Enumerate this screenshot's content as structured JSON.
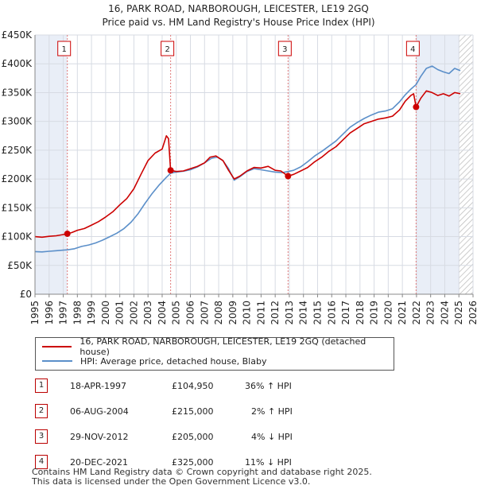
{
  "chart_data": {
    "type": "line",
    "title": "16, PARK ROAD, NARBOROUGH, LEICESTER, LE19 2GQ",
    "subtitle": "Price paid vs. HM Land Registry's House Price Index (HPI)",
    "xlim": [
      1995,
      2026
    ],
    "ylim": [
      0,
      450000
    ],
    "x_ticks": [
      "1995",
      "1996",
      "1997",
      "1998",
      "1999",
      "2000",
      "2001",
      "2002",
      "2003",
      "2004",
      "2005",
      "2006",
      "2007",
      "2008",
      "2009",
      "2010",
      "2011",
      "2012",
      "2013",
      "2014",
      "2015",
      "2016",
      "2017",
      "2018",
      "2019",
      "2020",
      "2021",
      "2022",
      "2023",
      "2024",
      "2025",
      "2026"
    ],
    "y_ticks": [
      {
        "value": 0,
        "label": "£0"
      },
      {
        "value": 50000,
        "label": "£50K"
      },
      {
        "value": 100000,
        "label": "£100K"
      },
      {
        "value": 150000,
        "label": "£150K"
      },
      {
        "value": 200000,
        "label": "£200K"
      },
      {
        "value": 250000,
        "label": "£250K"
      },
      {
        "value": 300000,
        "label": "£300K"
      },
      {
        "value": 350000,
        "label": "£350K"
      },
      {
        "value": 400000,
        "label": "£400K"
      },
      {
        "value": 450000,
        "label": "£450K"
      }
    ],
    "series": [
      {
        "name": "16, PARK ROAD, NARBOROUGH, LEICESTER, LE19 2GQ (detached house)",
        "color": "#cc0000",
        "points": [
          [
            1995.0,
            100000
          ],
          [
            1995.5,
            99000
          ],
          [
            1996.0,
            100500
          ],
          [
            1996.5,
            101500
          ],
          [
            1997.0,
            103500
          ],
          [
            1997.29,
            104950
          ],
          [
            1997.6,
            107000
          ],
          [
            1998.0,
            111000
          ],
          [
            1998.5,
            114000
          ],
          [
            1999.0,
            120000
          ],
          [
            1999.5,
            126000
          ],
          [
            2000.0,
            134000
          ],
          [
            2000.5,
            143000
          ],
          [
            2001.0,
            155000
          ],
          [
            2001.5,
            166000
          ],
          [
            2002.0,
            183000
          ],
          [
            2002.5,
            208000
          ],
          [
            2003.0,
            232000
          ],
          [
            2003.5,
            245000
          ],
          [
            2004.0,
            252000
          ],
          [
            2004.3,
            275000
          ],
          [
            2004.45,
            270000
          ],
          [
            2004.6,
            215000
          ],
          [
            2005.0,
            213000
          ],
          [
            2005.5,
            214000
          ],
          [
            2006.0,
            218000
          ],
          [
            2006.5,
            222000
          ],
          [
            2007.0,
            228000
          ],
          [
            2007.4,
            238000
          ],
          [
            2007.8,
            240000
          ],
          [
            2008.3,
            232000
          ],
          [
            2008.7,
            215000
          ],
          [
            2009.1,
            200000
          ],
          [
            2009.5,
            205000
          ],
          [
            2010.0,
            214000
          ],
          [
            2010.5,
            220000
          ],
          [
            2011.0,
            219000
          ],
          [
            2011.5,
            222000
          ],
          [
            2012.0,
            215000
          ],
          [
            2012.4,
            214000
          ],
          [
            2012.91,
            205000
          ],
          [
            2013.3,
            208000
          ],
          [
            2013.8,
            214000
          ],
          [
            2014.3,
            220000
          ],
          [
            2014.8,
            230000
          ],
          [
            2015.3,
            238000
          ],
          [
            2015.8,
            248000
          ],
          [
            2016.3,
            256000
          ],
          [
            2016.8,
            268000
          ],
          [
            2017.3,
            280000
          ],
          [
            2017.8,
            288000
          ],
          [
            2018.3,
            296000
          ],
          [
            2018.8,
            300000
          ],
          [
            2019.3,
            304000
          ],
          [
            2019.8,
            306000
          ],
          [
            2020.3,
            309000
          ],
          [
            2020.8,
            320000
          ],
          [
            2021.2,
            335000
          ],
          [
            2021.6,
            345000
          ],
          [
            2021.8,
            348000
          ],
          [
            2021.97,
            325000
          ],
          [
            2022.3,
            340000
          ],
          [
            2022.7,
            353000
          ],
          [
            2023.1,
            350000
          ],
          [
            2023.5,
            345000
          ],
          [
            2023.9,
            348000
          ],
          [
            2024.3,
            344000
          ],
          [
            2024.7,
            350000
          ],
          [
            2025.1,
            348000
          ]
        ]
      },
      {
        "name": "HPI: Average price, detached house, Blaby",
        "color": "#5b8fc9",
        "points": [
          [
            1995.0,
            74000
          ],
          [
            1995.5,
            73500
          ],
          [
            1996.0,
            74500
          ],
          [
            1996.5,
            75500
          ],
          [
            1997.0,
            76500
          ],
          [
            1997.29,
            77000
          ],
          [
            1997.8,
            79000
          ],
          [
            1998.3,
            83000
          ],
          [
            1998.8,
            85500
          ],
          [
            1999.3,
            89000
          ],
          [
            1999.8,
            94000
          ],
          [
            2000.3,
            100000
          ],
          [
            2000.8,
            106000
          ],
          [
            2001.3,
            114000
          ],
          [
            2001.8,
            125000
          ],
          [
            2002.3,
            140000
          ],
          [
            2002.8,
            158000
          ],
          [
            2003.3,
            175000
          ],
          [
            2003.8,
            190000
          ],
          [
            2004.3,
            203000
          ],
          [
            2004.6,
            210000
          ],
          [
            2005.0,
            212000
          ],
          [
            2005.5,
            213500
          ],
          [
            2006.0,
            216000
          ],
          [
            2006.5,
            221000
          ],
          [
            2007.0,
            228000
          ],
          [
            2007.5,
            236000
          ],
          [
            2007.9,
            238000
          ],
          [
            2008.3,
            232000
          ],
          [
            2008.7,
            218000
          ],
          [
            2009.1,
            198000
          ],
          [
            2009.5,
            204000
          ],
          [
            2010.0,
            213000
          ],
          [
            2010.5,
            218000
          ],
          [
            2011.0,
            216000
          ],
          [
            2011.5,
            214000
          ],
          [
            2012.0,
            212000
          ],
          [
            2012.5,
            211000
          ],
          [
            2012.91,
            213000
          ],
          [
            2013.3,
            215000
          ],
          [
            2013.8,
            221000
          ],
          [
            2014.3,
            230000
          ],
          [
            2014.8,
            240000
          ],
          [
            2015.3,
            248000
          ],
          [
            2015.8,
            257000
          ],
          [
            2016.3,
            266000
          ],
          [
            2016.8,
            278000
          ],
          [
            2017.3,
            290000
          ],
          [
            2017.8,
            298000
          ],
          [
            2018.3,
            305000
          ],
          [
            2018.8,
            311000
          ],
          [
            2019.3,
            316000
          ],
          [
            2019.8,
            318000
          ],
          [
            2020.3,
            322000
          ],
          [
            2020.8,
            334000
          ],
          [
            2021.2,
            346000
          ],
          [
            2021.6,
            356000
          ],
          [
            2021.97,
            364000
          ],
          [
            2022.3,
            378000
          ],
          [
            2022.7,
            392000
          ],
          [
            2023.1,
            396000
          ],
          [
            2023.5,
            390000
          ],
          [
            2023.9,
            386000
          ],
          [
            2024.3,
            383000
          ],
          [
            2024.7,
            392000
          ],
          [
            2025.1,
            388000
          ]
        ]
      }
    ],
    "sales": [
      {
        "num": "1",
        "x": 1997.29,
        "price": 104950
      },
      {
        "num": "2",
        "x": 2004.6,
        "price": 215000
      },
      {
        "num": "3",
        "x": 2012.91,
        "price": 205000
      },
      {
        "num": "4",
        "x": 2021.97,
        "price": 325000
      }
    ],
    "hatched_from": 2025.0
  },
  "legend": {
    "property": "16, PARK ROAD, NARBOROUGH, LEICESTER, LE19 2GQ (detached house)",
    "hpi": "HPI: Average price, detached house, Blaby"
  },
  "table": [
    {
      "num": "1",
      "date": "18-APR-1997",
      "price": "£104,950",
      "delta": "36% ↑ HPI"
    },
    {
      "num": "2",
      "date": "06-AUG-2004",
      "price": "£215,000",
      "delta": "2% ↑ HPI"
    },
    {
      "num": "3",
      "date": "29-NOV-2012",
      "price": "£205,000",
      "delta": "4% ↓ HPI"
    },
    {
      "num": "4",
      "date": "20-DEC-2021",
      "price": "£325,000",
      "delta": "11% ↓ HPI"
    }
  ],
  "footer": {
    "line1": "Contains HM Land Registry data © Crown copyright and database right 2025.",
    "line2": "This data is licensed under the Open Government Licence v3.0."
  }
}
